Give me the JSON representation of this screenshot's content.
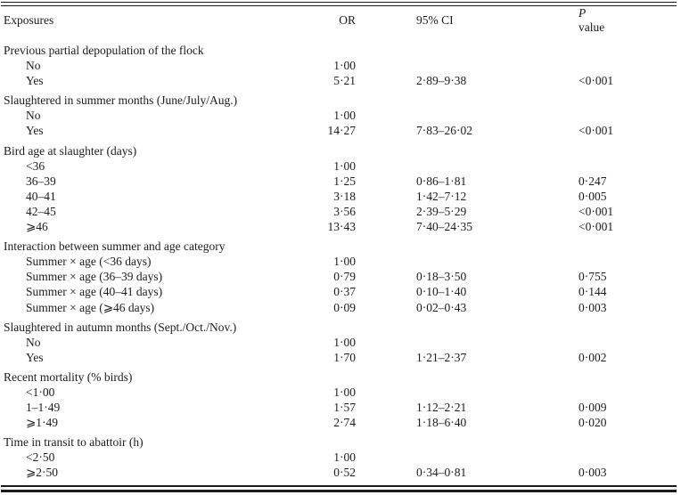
{
  "table": {
    "columns": {
      "exposures": "Exposures",
      "or": "OR",
      "ci": "95% CI",
      "p_italic": "P",
      "p_rest": " value"
    },
    "groups": [
      {
        "label": "Previous partial depopulation of the flock",
        "rows": [
          {
            "label": "No",
            "or": "1·00",
            "ci": "",
            "p": ""
          },
          {
            "label": "Yes",
            "or": "5·21",
            "ci": "2·89–9·38",
            "p": "<0·001"
          }
        ]
      },
      {
        "label": "Slaughtered in summer months (June/July/Aug.)",
        "rows": [
          {
            "label": "No",
            "or": "1·00",
            "ci": "",
            "p": ""
          },
          {
            "label": "Yes",
            "or": "14·27",
            "ci": "7·83–26·02",
            "p": "<0·001"
          }
        ]
      },
      {
        "label": "Bird age at slaughter (days)",
        "rows": [
          {
            "label": "<36",
            "or": "1·00",
            "ci": "",
            "p": ""
          },
          {
            "label": "36–39",
            "or": "1·25",
            "ci": "0·86–1·81",
            "p": "0·247"
          },
          {
            "label": "40–41",
            "or": "3·18",
            "ci": "1·42–7·12",
            "p": "0·005"
          },
          {
            "label": "42–45",
            "or": "3·56",
            "ci": "2·39–5·29",
            "p": "<0·001"
          },
          {
            "label": "⩾46",
            "or": "13·43",
            "ci": "7·40–24·35",
            "p": "<0·001"
          }
        ]
      },
      {
        "label": "Interaction between summer and age category",
        "rows": [
          {
            "label": "Summer × age (<36 days)",
            "or": "1·00",
            "ci": "",
            "p": ""
          },
          {
            "label": "Summer × age (36–39 days)",
            "or": "0·79",
            "ci": "0·18–3·50",
            "p": "0·755"
          },
          {
            "label": "Summer × age (40–41 days)",
            "or": "0·37",
            "ci": "0·10–1·40",
            "p": "0·144"
          },
          {
            "label": "Summer × age (⩾46 days)",
            "or": "0·09",
            "ci": "0·02–0·43",
            "p": "0·003"
          }
        ]
      },
      {
        "label": "Slaughtered in autumn months (Sept./Oct./Nov.)",
        "rows": [
          {
            "label": "No",
            "or": "1·00",
            "ci": "",
            "p": ""
          },
          {
            "label": "Yes",
            "or": "1·70",
            "ci": "1·21–2·37",
            "p": "0·002"
          }
        ]
      },
      {
        "label": "Recent mortality (% birds)",
        "rows": [
          {
            "label": "<1·00",
            "or": "1·00",
            "ci": "",
            "p": ""
          },
          {
            "label": "1–1·49",
            "or": "1·57",
            "ci": "1·12–2·21",
            "p": "0·009"
          },
          {
            "label": "⩾1·49",
            "or": "2·74",
            "ci": "1·18–6·40",
            "p": "0·020"
          }
        ]
      },
      {
        "label": "Time in transit to abattoir (h)",
        "rows": [
          {
            "label": "<2·50",
            "or": "1·00",
            "ci": "",
            "p": ""
          },
          {
            "label": "⩾2·50",
            "or": "0·52",
            "ci": "0·34–0·81",
            "p": "0·003"
          }
        ]
      }
    ]
  }
}
